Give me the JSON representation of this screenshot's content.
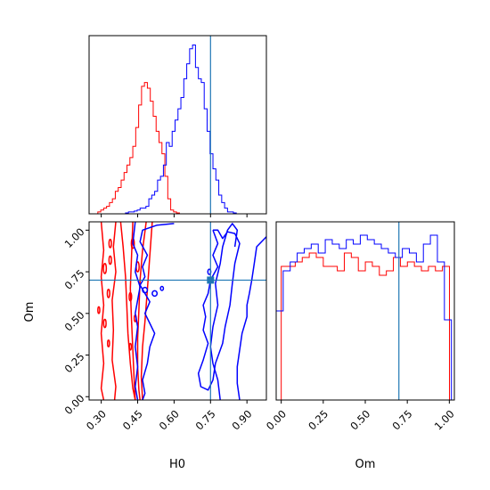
{
  "chart_data": {
    "type": "corner",
    "truth": {
      "H0": 0.75,
      "Om": 0.7
    },
    "colors": {
      "series_a": "#ff0000",
      "series_b": "#0000ff",
      "truth": "#1f77b4"
    },
    "panels": {
      "h0_hist": {
        "type": "histogram",
        "xlim": [
          0.25,
          0.98
        ],
        "bin_width": 0.012,
        "series": [
          {
            "color": "#ff0000",
            "bin_start": 0.25,
            "values": [
              0,
              0,
              0,
              0.01,
              0.02,
              0.03,
              0.04,
              0.06,
              0.08,
              0.12,
              0.14,
              0.18,
              0.22,
              0.26,
              0.3,
              0.36,
              0.46,
              0.58,
              0.68,
              0.7,
              0.67,
              0.6,
              0.52,
              0.44,
              0.38,
              0.32,
              0.2,
              0.08,
              0.02,
              0.01,
              0.005,
              0
            ]
          },
          {
            "color": "#0000ff",
            "bin_start": 0.4,
            "values": [
              0.005,
              0.01,
              0.01,
              0.015,
              0.02,
              0.03,
              0.03,
              0.04,
              0.08,
              0.1,
              0.12,
              0.18,
              0.2,
              0.26,
              0.38,
              0.36,
              0.44,
              0.5,
              0.56,
              0.62,
              0.72,
              0.8,
              0.88,
              0.9,
              0.78,
              0.72,
              0.7,
              0.56,
              0.44,
              0.32,
              0.24,
              0.18,
              0.1,
              0.06,
              0.03,
              0.01,
              0.01,
              0.005
            ]
          }
        ]
      },
      "contour": {
        "type": "contour",
        "xlim": [
          0.25,
          0.98
        ],
        "ylim": [
          -0.02,
          1.05
        ],
        "xlabel": "H0",
        "ylabel": "Om",
        "xticks": [
          "0.30",
          "0.45",
          "0.60",
          "0.75",
          "0.90"
        ],
        "xtick_values": [
          0.3,
          0.45,
          0.6,
          0.75,
          0.9
        ],
        "yticks": [
          "0.00",
          "0.25",
          "0.50",
          "0.75",
          "1.00"
        ],
        "ytick_values": [
          0.0,
          0.25,
          0.5,
          0.75,
          1.0
        ],
        "series": [
          {
            "color": "#ff0000",
            "contours": [
              [
                [
                  0.38,
                  1.05
                ],
                [
                  0.39,
                  0.9
                ],
                [
                  0.4,
                  0.72
                ],
                [
                  0.405,
                  0.55
                ],
                [
                  0.41,
                  0.38
                ],
                [
                  0.42,
                  0.2
                ],
                [
                  0.43,
                  0.05
                ],
                [
                  0.44,
                  -0.02
                ]
              ],
              [
                [
                  0.43,
                  1.05
                ],
                [
                  0.425,
                  0.85
                ],
                [
                  0.42,
                  0.65
                ],
                [
                  0.425,
                  0.45
                ],
                [
                  0.43,
                  0.28
                ],
                [
                  0.435,
                  0.12
                ],
                [
                  0.44,
                  -0.02
                ]
              ],
              [
                [
                  0.485,
                  1.05
                ],
                [
                  0.47,
                  0.88
                ],
                [
                  0.46,
                  0.7
                ],
                [
                  0.455,
                  0.52
                ],
                [
                  0.45,
                  0.35
                ],
                [
                  0.45,
                  0.18
                ],
                [
                  0.455,
                  0.04
                ],
                [
                  0.46,
                  -0.02
                ]
              ],
              [
                [
                  0.51,
                  1.05
                ],
                [
                  0.5,
                  0.85
                ],
                [
                  0.49,
                  0.64
                ],
                [
                  0.48,
                  0.45
                ],
                [
                  0.47,
                  0.3
                ],
                [
                  0.465,
                  0.12
                ],
                [
                  0.47,
                  -0.02
                ]
              ],
              [
                [
                  0.3,
                  1.05
                ],
                [
                  0.31,
                  0.88
                ],
                [
                  0.3,
                  0.72
                ],
                [
                  0.31,
                  0.55
                ],
                [
                  0.3,
                  0.38
                ],
                [
                  0.31,
                  0.2
                ],
                [
                  0.3,
                  0.05
                ],
                [
                  0.31,
                  -0.02
                ]
              ],
              [
                [
                  0.36,
                  1.05
                ],
                [
                  0.35,
                  0.9
                ],
                [
                  0.36,
                  0.75
                ],
                [
                  0.345,
                  0.58
                ],
                [
                  0.35,
                  0.4
                ],
                [
                  0.345,
                  0.22
                ],
                [
                  0.36,
                  0.06
                ],
                [
                  0.355,
                  -0.02
                ]
              ]
            ],
            "islands": [
              [
                0.337,
                0.92,
                0.005,
                0.025
              ],
              [
                0.337,
                0.82,
                0.005,
                0.025
              ],
              [
                0.315,
                0.77,
                0.006,
                0.03
              ],
              [
                0.33,
                0.62,
                0.005,
                0.025
              ],
              [
                0.29,
                0.52,
                0.004,
                0.02
              ],
              [
                0.315,
                0.44,
                0.005,
                0.025
              ],
              [
                0.33,
                0.32,
                0.004,
                0.02
              ],
              [
                0.43,
                0.92,
                0.006,
                0.03
              ],
              [
                0.45,
                0.78,
                0.006,
                0.03
              ],
              [
                0.42,
                0.6,
                0.005,
                0.025
              ],
              [
                0.44,
                0.47,
                0.004,
                0.02
              ],
              [
                0.42,
                0.3,
                0.004,
                0.02
              ]
            ]
          },
          {
            "color": "#0000ff",
            "contours": [
              [
                [
                  0.6,
                  1.04
                ],
                [
                  0.53,
                  1.03
                ],
                [
                  0.47,
                  1.0
                ],
                [
                  0.46,
                  0.93
                ],
                [
                  0.49,
                  0.85
                ],
                [
                  0.47,
                  0.78
                ],
                [
                  0.48,
                  0.72
                ],
                [
                  0.46,
                  0.67
                ],
                [
                  0.48,
                  0.62
                ],
                [
                  0.5,
                  0.57
                ],
                [
                  0.48,
                  0.5
                ],
                [
                  0.5,
                  0.44
                ],
                [
                  0.52,
                  0.38
                ],
                [
                  0.5,
                  0.3
                ],
                [
                  0.49,
                  0.2
                ],
                [
                  0.47,
                  0.1
                ],
                [
                  0.48,
                  0.02
                ],
                [
                  0.47,
                  -0.02
                ]
              ],
              [
                [
                  0.44,
                  1.05
                ],
                [
                  0.43,
                  0.92
                ],
                [
                  0.45,
                  0.85
                ],
                [
                  0.44,
                  0.75
                ],
                [
                  0.46,
                  0.66
                ],
                [
                  0.45,
                  0.58
                ],
                [
                  0.44,
                  0.5
                ],
                [
                  0.45,
                  0.42
                ],
                [
                  0.44,
                  0.3
                ],
                [
                  0.45,
                  0.18
                ],
                [
                  0.44,
                  0.06
                ],
                [
                  0.45,
                  -0.02
                ]
              ],
              [
                [
                  0.76,
                  1.0
                ],
                [
                  0.78,
                  0.92
                ],
                [
                  0.76,
                  0.85
                ],
                [
                  0.78,
                  0.78
                ],
                [
                  0.75,
                  0.7
                ],
                [
                  0.74,
                  0.62
                ],
                [
                  0.72,
                  0.55
                ],
                [
                  0.73,
                  0.48
                ],
                [
                  0.72,
                  0.4
                ],
                [
                  0.74,
                  0.32
                ],
                [
                  0.72,
                  0.22
                ],
                [
                  0.7,
                  0.14
                ],
                [
                  0.71,
                  0.06
                ],
                [
                  0.74,
                  0.04
                ],
                [
                  0.76,
                  0.1
                ],
                [
                  0.77,
                  0.2
                ],
                [
                  0.8,
                  0.32
                ],
                [
                  0.81,
                  0.42
                ],
                [
                  0.83,
                  0.55
                ],
                [
                  0.84,
                  0.68
                ],
                [
                  0.85,
                  0.8
                ],
                [
                  0.87,
                  0.92
                ],
                [
                  0.85,
                  0.98
                ],
                [
                  0.82,
                  0.99
                ],
                [
                  0.8,
                  0.95
                ],
                [
                  0.78,
                  1.0
                ],
                [
                  0.76,
                  1.0
                ]
              ],
              [
                [
                  0.98,
                  0.96
                ],
                [
                  0.94,
                  0.9
                ],
                [
                  0.93,
                  0.8
                ],
                [
                  0.92,
                  0.7
                ],
                [
                  0.91,
                  0.62
                ],
                [
                  0.9,
                  0.55
                ],
                [
                  0.9,
                  0.48
                ],
                [
                  0.88,
                  0.38
                ],
                [
                  0.87,
                  0.28
                ],
                [
                  0.86,
                  0.18
                ],
                [
                  0.86,
                  0.08
                ],
                [
                  0.87,
                  -0.02
                ]
              ],
              [
                [
                  0.79,
                  -0.02
                ],
                [
                  0.78,
                  0.1
                ],
                [
                  0.76,
                  0.2
                ],
                [
                  0.75,
                  0.3
                ],
                [
                  0.76,
                  0.42
                ],
                [
                  0.78,
                  0.55
                ],
                [
                  0.77,
                  0.68
                ],
                [
                  0.79,
                  0.8
                ],
                [
                  0.8,
                  0.9
                ],
                [
                  0.82,
                  1.0
                ],
                [
                  0.84,
                  1.04
                ],
                [
                  0.86,
                  1.0
                ],
                [
                  0.85,
                  0.9
                ]
              ]
            ],
            "islands": [
              [
                0.48,
                0.64,
                0.01,
                0.016
              ],
              [
                0.52,
                0.62,
                0.01,
                0.016
              ],
              [
                0.55,
                0.65,
                0.006,
                0.012
              ],
              [
                0.745,
                0.75,
                0.006,
                0.016
              ]
            ]
          }
        ]
      },
      "om_hist": {
        "type": "histogram",
        "xlim": [
          -0.03,
          1.03
        ],
        "xlabel": "Om",
        "xticks": [
          "0.00",
          "0.25",
          "0.50",
          "0.75",
          "1.00"
        ],
        "xtick_values": [
          0.0,
          0.25,
          0.5,
          0.75,
          1.0
        ],
        "bin_width": 0.0417,
        "series": [
          {
            "color": "#ff0000",
            "bin_start": 0.0,
            "values": [
              0.6,
              0.6,
              0.62,
              0.64,
              0.66,
              0.64,
              0.6,
              0.6,
              0.58,
              0.66,
              0.64,
              0.58,
              0.62,
              0.6,
              0.56,
              0.58,
              0.64,
              0.6,
              0.62,
              0.6,
              0.58,
              0.6,
              0.58,
              0.6,
              0
            ]
          },
          {
            "color": "#0000ff",
            "bin_start": -0.03,
            "values": [
              0.4,
              0.58,
              0.62,
              0.66,
              0.68,
              0.7,
              0.66,
              0.72,
              0.7,
              0.68,
              0.72,
              0.7,
              0.74,
              0.72,
              0.7,
              0.68,
              0.66,
              0.64,
              0.68,
              0.66,
              0.62,
              0.7,
              0.74,
              0.62,
              0.36
            ]
          }
        ]
      }
    }
  }
}
